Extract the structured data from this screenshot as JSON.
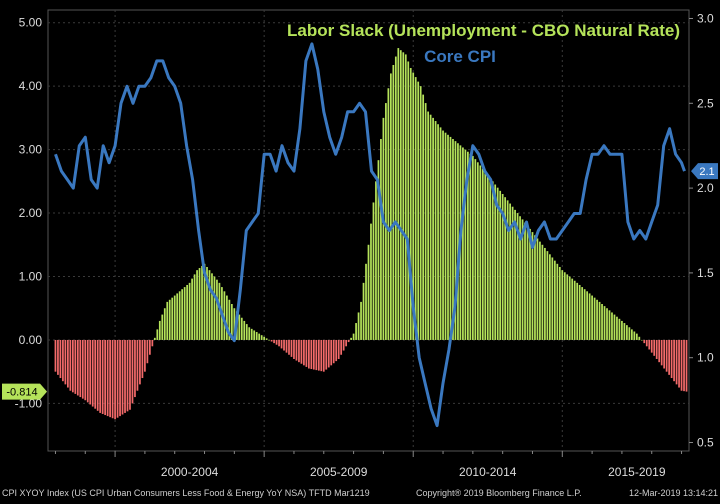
{
  "chart_data": {
    "type": "bar",
    "title": "Labor Slack (Unemployment - CBO Natural Rate)",
    "subtitle": "Core CPI",
    "x_range": [
      1997.75,
      2019.25
    ],
    "x_tick_labels": [
      "2000-2004",
      "2005-2009",
      "2010-2014",
      "2015-2019"
    ],
    "left_axis": {
      "range": [
        -1.75,
        5.2
      ],
      "ticks": [
        -1.0,
        0.0,
        1.0,
        2.0,
        3.0,
        4.0,
        5.0
      ],
      "tick_labels": [
        "-1.00",
        "0.00",
        "1.00",
        "2.00",
        "3.00",
        "4.00",
        "5.00"
      ]
    },
    "right_axis": {
      "range": [
        0.45,
        3.05
      ],
      "ticks": [
        0.5,
        1.0,
        1.5,
        2.0,
        2.5,
        3.0
      ],
      "tick_labels": [
        "0.5",
        "1.0",
        "1.5",
        "2.0",
        "2.5",
        "3.0"
      ]
    },
    "grid": true,
    "series": [
      {
        "name": "Labor Slack (Unemployment - CBO Natural Rate)",
        "axis": "left",
        "kind": "bar",
        "color_positive": "#b5e35a",
        "color_negative": "#f26a6a",
        "x": [
          1998.0,
          1998.5,
          1999.0,
          1999.5,
          2000.0,
          2000.5,
          2001.0,
          2001.25,
          2001.5,
          2001.75,
          2002.0,
          2002.25,
          2002.5,
          2002.75,
          2003.0,
          2003.25,
          2003.5,
          2003.75,
          2004.0,
          2004.5,
          2005.0,
          2005.5,
          2006.0,
          2006.5,
          2007.0,
          2007.5,
          2008.0,
          2008.25,
          2008.5,
          2008.75,
          2009.0,
          2009.25,
          2009.5,
          2009.75,
          2009.9,
          2010.25,
          2010.5,
          2011.0,
          2011.5,
          2012.0,
          2012.5,
          2013.0,
          2013.5,
          2014.0,
          2014.5,
          2015.0,
          2015.5,
          2016.0,
          2016.5,
          2017.0,
          2017.5,
          2018.0,
          2018.5,
          2019.0,
          2019.17
        ],
        "values": [
          -0.5,
          -0.8,
          -0.95,
          -1.15,
          -1.25,
          -1.1,
          -0.5,
          -0.1,
          0.3,
          0.6,
          0.7,
          0.8,
          0.9,
          1.1,
          1.2,
          1.05,
          0.9,
          0.7,
          0.5,
          0.2,
          0.05,
          -0.1,
          -0.3,
          -0.45,
          -0.5,
          -0.3,
          0.1,
          0.6,
          1.5,
          2.5,
          3.5,
          4.2,
          4.6,
          4.5,
          4.3,
          4.0,
          3.6,
          3.3,
          3.1,
          2.9,
          2.6,
          2.3,
          2.0,
          1.7,
          1.4,
          1.1,
          0.9,
          0.7,
          0.5,
          0.3,
          0.1,
          -0.2,
          -0.5,
          -0.8,
          -0.814
        ]
      },
      {
        "name": "Core CPI",
        "axis": "right",
        "kind": "line",
        "color": "#3a78c0",
        "x": [
          1998.0,
          1998.2,
          1998.4,
          1998.6,
          1998.8,
          1999.0,
          1999.2,
          1999.4,
          1999.6,
          1999.8,
          2000.0,
          2000.2,
          2000.4,
          2000.6,
          2000.8,
          2001.0,
          2001.2,
          2001.4,
          2001.6,
          2001.8,
          2002.0,
          2002.2,
          2002.4,
          2002.6,
          2002.8,
          2003.0,
          2003.2,
          2003.4,
          2003.6,
          2003.8,
          2004.0,
          2004.2,
          2004.4,
          2004.6,
          2004.8,
          2005.0,
          2005.2,
          2005.4,
          2005.6,
          2005.8,
          2006.0,
          2006.2,
          2006.4,
          2006.6,
          2006.8,
          2007.0,
          2007.2,
          2007.4,
          2007.6,
          2007.8,
          2008.0,
          2008.2,
          2008.4,
          2008.6,
          2008.8,
          2009.0,
          2009.2,
          2009.4,
          2009.6,
          2009.8,
          2010.0,
          2010.2,
          2010.4,
          2010.6,
          2010.8,
          2011.0,
          2011.2,
          2011.4,
          2011.6,
          2011.8,
          2012.0,
          2012.2,
          2012.4,
          2012.6,
          2012.8,
          2013.0,
          2013.2,
          2013.4,
          2013.6,
          2013.8,
          2014.0,
          2014.2,
          2014.4,
          2014.6,
          2014.8,
          2015.0,
          2015.2,
          2015.4,
          2015.6,
          2015.8,
          2016.0,
          2016.2,
          2016.4,
          2016.6,
          2016.8,
          2017.0,
          2017.2,
          2017.4,
          2017.6,
          2017.8,
          2018.0,
          2018.2,
          2018.4,
          2018.6,
          2018.8,
          2019.0,
          2019.1
        ],
        "values": [
          2.2,
          2.1,
          2.05,
          2.0,
          2.25,
          2.3,
          2.05,
          2.0,
          2.25,
          2.15,
          2.25,
          2.5,
          2.6,
          2.5,
          2.6,
          2.6,
          2.65,
          2.75,
          2.75,
          2.65,
          2.6,
          2.5,
          2.25,
          2.05,
          1.75,
          1.5,
          1.4,
          1.35,
          1.25,
          1.15,
          1.1,
          1.4,
          1.75,
          1.8,
          1.85,
          2.2,
          2.2,
          2.1,
          2.25,
          2.15,
          2.1,
          2.35,
          2.75,
          2.85,
          2.7,
          2.45,
          2.3,
          2.2,
          2.3,
          2.45,
          2.45,
          2.5,
          2.45,
          2.1,
          2.05,
          1.8,
          1.75,
          1.8,
          1.75,
          1.7,
          1.3,
          1.0,
          0.85,
          0.7,
          0.6,
          0.85,
          1.05,
          1.3,
          1.75,
          2.05,
          2.25,
          2.2,
          2.1,
          2.05,
          1.9,
          1.85,
          1.75,
          1.8,
          1.7,
          1.8,
          1.65,
          1.75,
          1.8,
          1.7,
          1.7,
          1.75,
          1.8,
          1.85,
          1.85,
          2.05,
          2.2,
          2.2,
          2.25,
          2.2,
          2.2,
          2.2,
          1.8,
          1.7,
          1.75,
          1.7,
          1.8,
          1.9,
          2.25,
          2.35,
          2.2,
          2.15,
          2.1
        ]
      }
    ],
    "last_value_labels": [
      {
        "axis": "left",
        "value": -0.814,
        "text": "-0.814",
        "color": "#b5e35a"
      },
      {
        "axis": "right",
        "value": 2.1,
        "text": "2.1",
        "color": "#3a78c0"
      }
    ]
  },
  "footer": {
    "left": "CPI XYOY Index (US CPI Urban Consumers Less Food & Energy YoY NSA) TFTD Mar1219",
    "middle": "Copyright® 2019 Bloomberg Finance L.P.",
    "right": "12-Mar-2019 13:14:21"
  }
}
